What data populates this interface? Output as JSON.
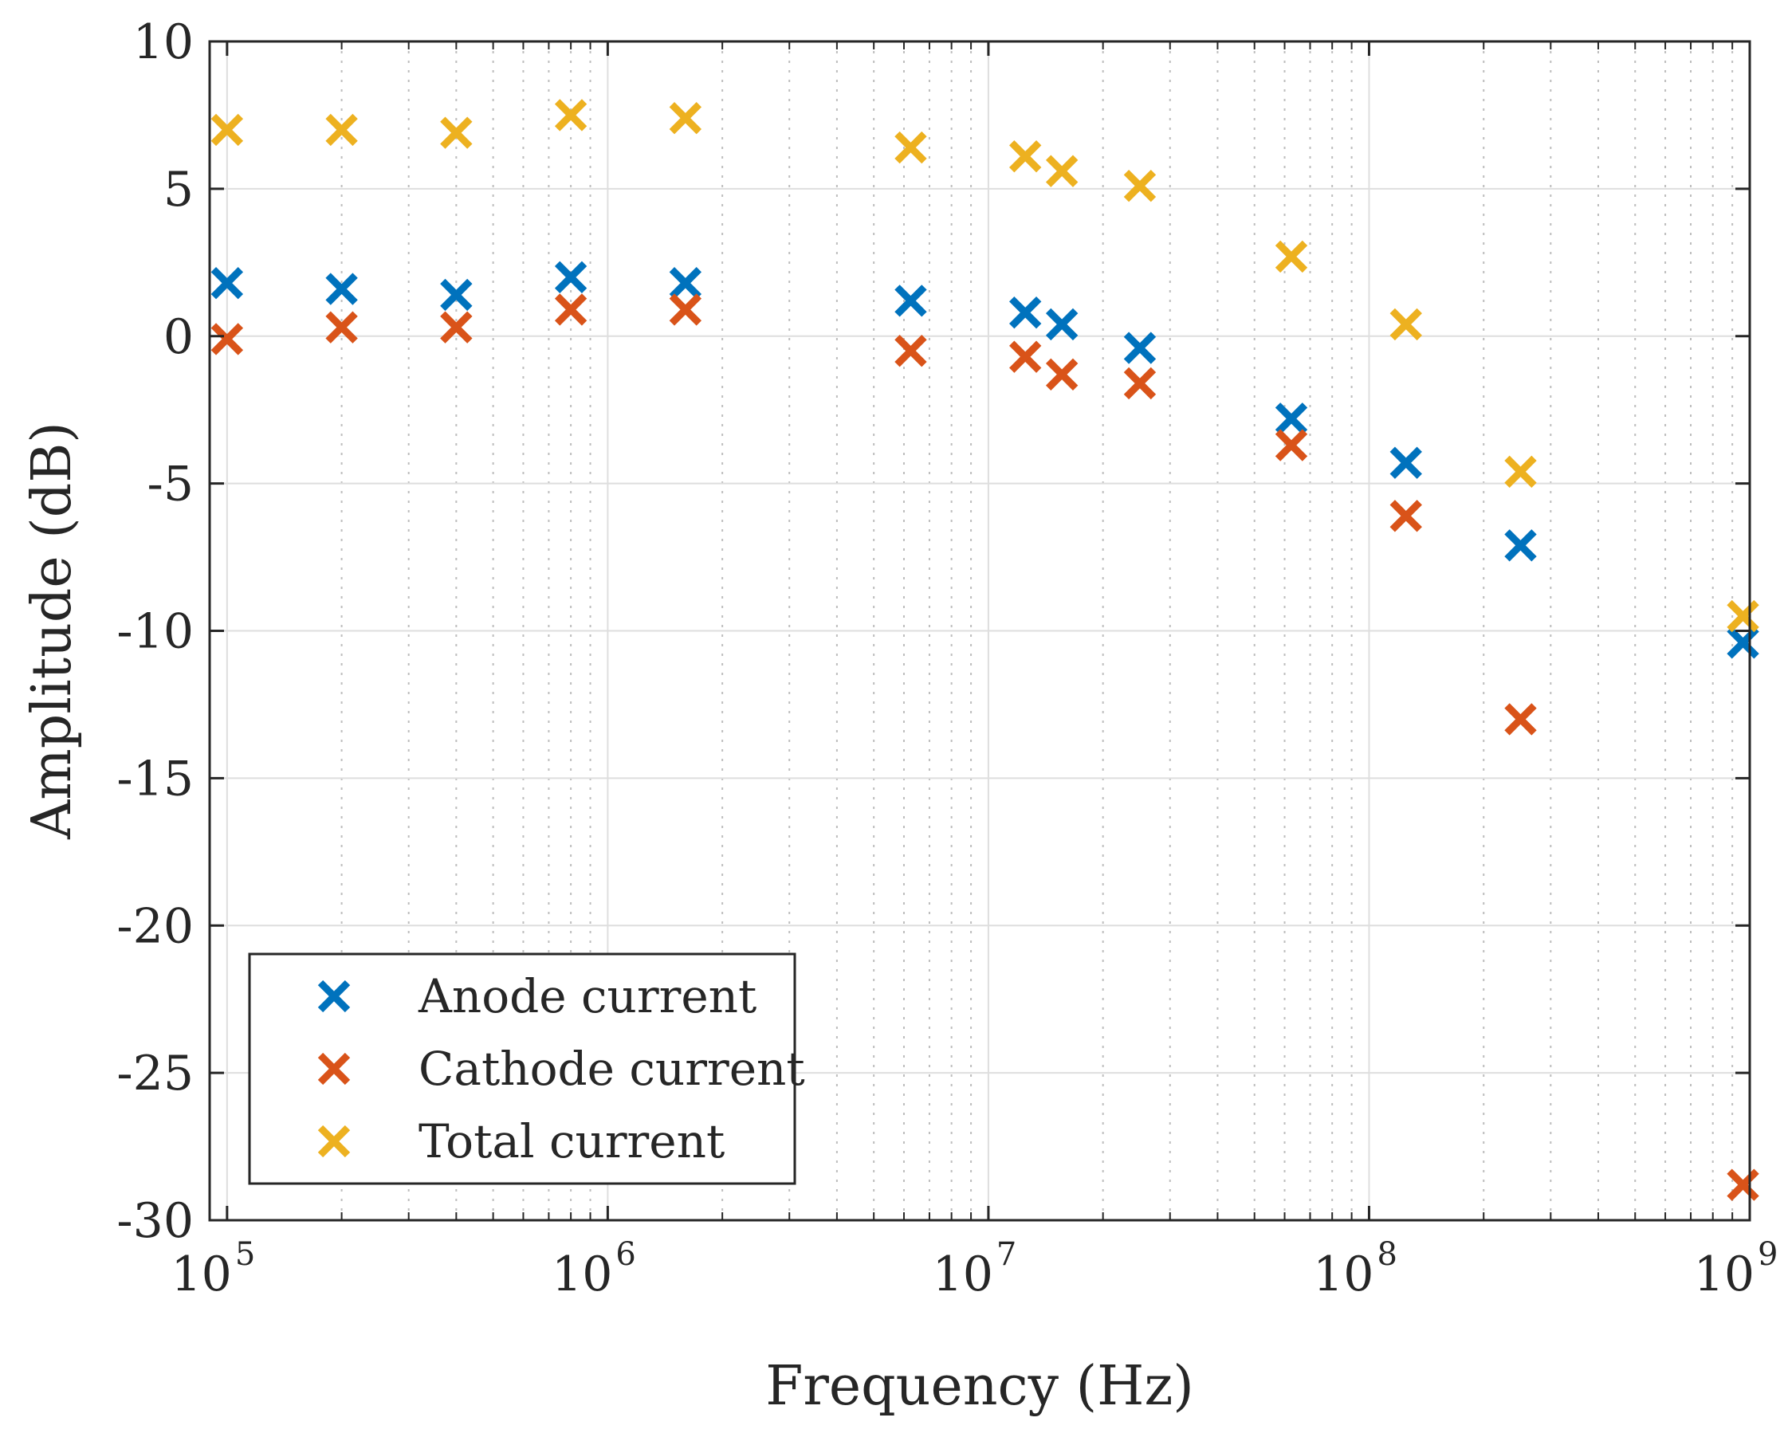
{
  "chart_data": {
    "type": "scatter",
    "title": "",
    "xlabel": "Frequency (Hz)",
    "ylabel": "Amplitude (dB)",
    "xscale": "log",
    "xlim": [
      90000,
      1000000000
    ],
    "ylim": [
      -30,
      10
    ],
    "grid": true,
    "minor_grid": true,
    "legend_position": "bottom-left",
    "x_ticks": [
      {
        "base": "10",
        "exp": "5",
        "value": 100000
      },
      {
        "base": "10",
        "exp": "6",
        "value": 1000000
      },
      {
        "base": "10",
        "exp": "7",
        "value": 10000000
      },
      {
        "base": "10",
        "exp": "8",
        "value": 100000000
      },
      {
        "base": "10",
        "exp": "9",
        "value": 1000000000
      }
    ],
    "y_ticks": [
      {
        "label": "10",
        "value": 10
      },
      {
        "label": "5",
        "value": 5
      },
      {
        "label": "0",
        "value": 0
      },
      {
        "label": "-5",
        "value": -5
      },
      {
        "label": "-10",
        "value": -10
      },
      {
        "label": "-15",
        "value": -15
      },
      {
        "label": "-20",
        "value": -20
      },
      {
        "label": "-25",
        "value": -25
      },
      {
        "label": "-30",
        "value": -30
      }
    ],
    "marker": "x",
    "series": [
      {
        "name": "Anode current",
        "color": "#0072BD",
        "points": [
          [
            100000,
            1.8
          ],
          [
            200000,
            1.6
          ],
          [
            400000,
            1.4
          ],
          [
            800000,
            2.0
          ],
          [
            1600000,
            1.8
          ],
          [
            6250000,
            1.2
          ],
          [
            12500000,
            0.8
          ],
          [
            15600000,
            0.4
          ],
          [
            25000000,
            -0.4
          ],
          [
            62500000,
            -2.8
          ],
          [
            125000000,
            -4.3
          ],
          [
            250000000,
            -7.1
          ],
          [
            960000000,
            -10.4
          ]
        ]
      },
      {
        "name": "Cathode current",
        "color": "#D95319",
        "points": [
          [
            100000,
            -0.1
          ],
          [
            200000,
            0.3
          ],
          [
            400000,
            0.3
          ],
          [
            800000,
            0.9
          ],
          [
            1600000,
            0.9
          ],
          [
            6250000,
            -0.5
          ],
          [
            12500000,
            -0.7
          ],
          [
            15600000,
            -1.3
          ],
          [
            25000000,
            -1.6
          ],
          [
            62500000,
            -3.7
          ],
          [
            125000000,
            -6.1
          ],
          [
            250000000,
            -13.0
          ],
          [
            960000000,
            -28.8
          ]
        ]
      },
      {
        "name": "Total current",
        "color": "#EDB120",
        "points": [
          [
            100000,
            7.0
          ],
          [
            200000,
            7.0
          ],
          [
            400000,
            6.9
          ],
          [
            800000,
            7.5
          ],
          [
            1600000,
            7.4
          ],
          [
            6250000,
            6.4
          ],
          [
            12500000,
            6.1
          ],
          [
            15600000,
            5.6
          ],
          [
            25000000,
            5.1
          ],
          [
            62500000,
            2.7
          ],
          [
            125000000,
            0.4
          ],
          [
            250000000,
            -4.6
          ],
          [
            960000000,
            -9.5
          ]
        ]
      }
    ]
  }
}
